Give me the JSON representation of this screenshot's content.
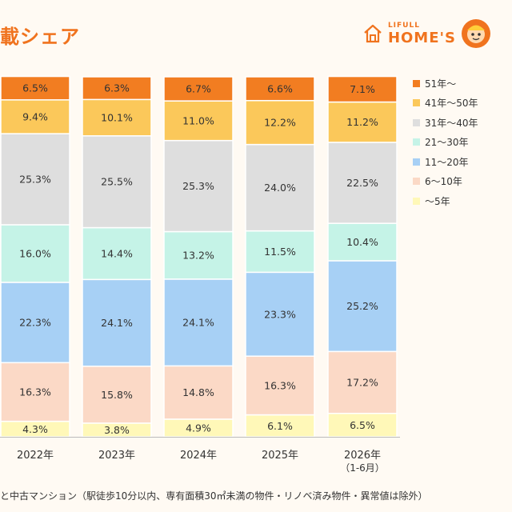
{
  "header": {
    "title": "載シェア"
  },
  "logo": {
    "small": "LIFULL",
    "big": "HOME'S"
  },
  "note": "と中古マンション（駅徒歩10分以内、専有面積30㎡未満の物件・リノベ済み物件・異常値は除外）",
  "colors": {
    "accent": "#f0731e"
  },
  "chart_data": {
    "type": "bar",
    "stacked": true,
    "categories": [
      "2022年",
      "2023年",
      "2024年",
      "2025年",
      "2026年"
    ],
    "category_sublabels": [
      "",
      "",
      "",
      "",
      "（1-6月）"
    ],
    "series": [
      {
        "name": "〜5年",
        "color": "#fff8b8",
        "values": [
          4.3,
          3.8,
          4.9,
          6.1,
          6.5
        ],
        "labels": [
          "4.3%",
          "3.8%",
          "4.9%",
          "6.1%",
          "6.5%"
        ]
      },
      {
        "name": "6〜10年",
        "color": "#fbd9c6",
        "values": [
          16.3,
          15.8,
          14.8,
          16.3,
          17.2
        ],
        "labels": [
          "16.3%",
          "15.8%",
          "14.8%",
          "16.3%",
          "17.2%"
        ]
      },
      {
        "name": "11〜20年",
        "color": "#a7d0f5",
        "values": [
          22.3,
          24.1,
          24.1,
          23.3,
          25.2
        ],
        "labels": [
          "22.3%",
          "24.1%",
          "24.1%",
          "23.3%",
          "25.2%"
        ]
      },
      {
        "name": "21〜30年",
        "color": "#c5f3e7",
        "values": [
          16.0,
          14.4,
          13.2,
          11.5,
          10.4
        ],
        "labels": [
          "16.0%",
          "14.4%",
          "13.2%",
          "11.5%",
          "10.4%"
        ]
      },
      {
        "name": "31年〜40年",
        "color": "#dedede",
        "values": [
          25.3,
          25.5,
          25.3,
          24.0,
          22.5
        ],
        "labels": [
          "25.3%",
          "25.5%",
          "25.3%",
          "24.0%",
          "22.5%"
        ]
      },
      {
        "name": "41年〜50年",
        "color": "#fbc85a",
        "values": [
          9.4,
          10.1,
          11.0,
          12.2,
          11.2
        ],
        "labels": [
          "9.4%",
          "10.1%",
          "11.0%",
          "12.2%",
          "11.2%"
        ]
      },
      {
        "name": "51年〜",
        "color": "#f27d21",
        "values": [
          6.5,
          6.3,
          6.7,
          6.6,
          7.1
        ],
        "labels": [
          "6.5%",
          "6.3%",
          "6.7%",
          "6.6%",
          "7.1%"
        ]
      }
    ],
    "ylim": [
      0,
      100
    ],
    "legend_position": "right",
    "grid": false
  }
}
